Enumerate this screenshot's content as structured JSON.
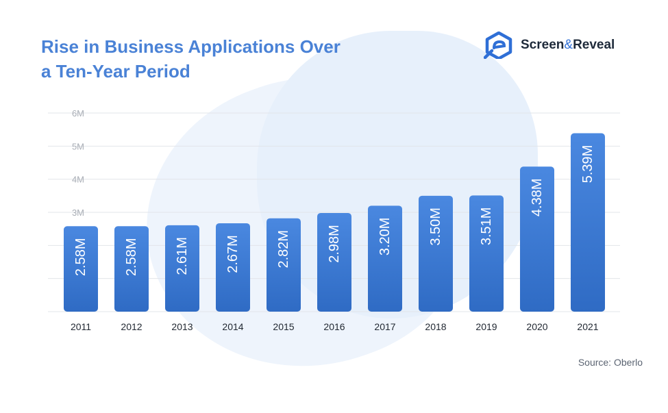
{
  "header": {
    "title_line1": "Rise in Business Applications Over",
    "title_line2": "a Ten-Year Period"
  },
  "brand": {
    "name_part1": "Screen",
    "name_amp": "&",
    "name_part2": "Reveal",
    "logo_icon": "screen-and-reveal-logo-icon",
    "logo_color": "#2f6fd6"
  },
  "footer": {
    "source": "Source: Oberlo"
  },
  "colors": {
    "title": "#4a82d6",
    "bar_top": "#4a88e0",
    "bar_bottom": "#2f6bc4",
    "grid": "#e2e5ea",
    "tick": "#a8adb5"
  },
  "chart_data": {
    "type": "bar",
    "title": "Rise in Business Applications Over a Ten-Year Period",
    "xlabel": "",
    "ylabel": "",
    "categories": [
      "2011",
      "2012",
      "2013",
      "2014",
      "2015",
      "2016",
      "2017",
      "2018",
      "2019",
      "2020",
      "2021"
    ],
    "values": [
      2.58,
      2.58,
      2.61,
      2.67,
      2.82,
      2.98,
      3.2,
      3.5,
      3.51,
      4.38,
      5.39
    ],
    "value_labels": [
      "2.58M",
      "2.58M",
      "2.61M",
      "2.67M",
      "2.82M",
      "2.98M",
      "3.20M",
      "3.50M",
      "3.51M",
      "4.38M",
      "5.39M"
    ],
    "y_ticks": [
      {
        "value": 0,
        "label": ""
      },
      {
        "value": 1,
        "label": ""
      },
      {
        "value": 2,
        "label": ""
      },
      {
        "value": 3,
        "label": "3M"
      },
      {
        "value": 4,
        "label": "4M"
      },
      {
        "value": 5,
        "label": "5M"
      },
      {
        "value": 6,
        "label": "6M"
      }
    ],
    "ylim": [
      0,
      6
    ],
    "grid": true,
    "legend": "none"
  }
}
